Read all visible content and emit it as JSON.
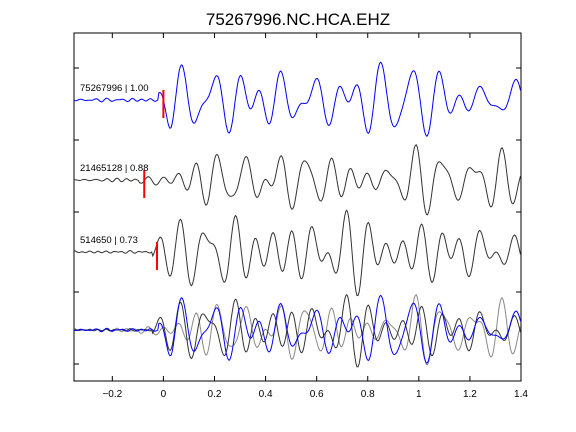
{
  "chart_data": {
    "type": "line",
    "title": "75267996.NC.HCA.EHZ",
    "xlabel": "",
    "ylabel": "",
    "xlim": [
      -0.35,
      1.4
    ],
    "xticks": [
      -0.2,
      0,
      0.2,
      0.4,
      0.6,
      0.8,
      1,
      1.2,
      1.4
    ],
    "xtick_labels": [
      "−0.2",
      "0",
      "0.2",
      "0.4",
      "0.6",
      "0.8",
      "1",
      "1.2",
      "1.4"
    ],
    "grid": false,
    "colors": {
      "master": "#0000ff",
      "similar": "#333333",
      "overlay_gray": "#888888",
      "pick": "#ff0000"
    },
    "traces": [
      {
        "label": "75267996 | 1.00",
        "color": "master",
        "pick_time": 0.0,
        "seed": 11
      },
      {
        "label": "21465128 | 0.88",
        "color": "similar",
        "pick_time": -0.075,
        "seed": 23
      },
      {
        "label": "514650 | 0.73",
        "color": "similar",
        "pick_time": -0.025,
        "seed": 37
      }
    ],
    "overlay": {
      "label": "",
      "series": [
        "75267996",
        "21465128",
        "514650"
      ]
    }
  }
}
